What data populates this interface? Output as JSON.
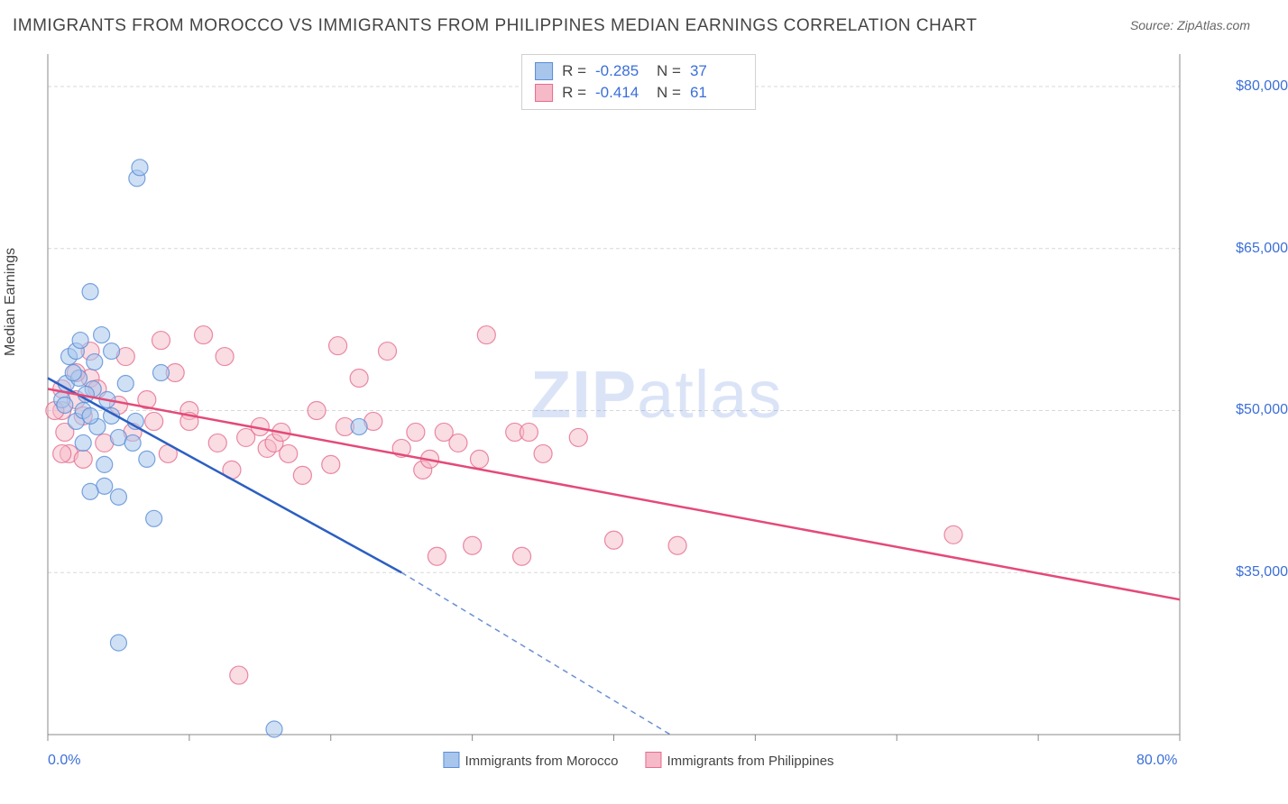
{
  "title": "IMMIGRANTS FROM MOROCCO VS IMMIGRANTS FROM PHILIPPINES MEDIAN EARNINGS CORRELATION CHART",
  "source_label": "Source: ",
  "source_value": "ZipAtlas.com",
  "watermark": {
    "zip": "ZIP",
    "atlas": "atlas"
  },
  "ylabel": "Median Earnings",
  "chart": {
    "type": "scatter",
    "xlim": [
      0,
      80
    ],
    "ylim": [
      20000,
      83000
    ],
    "xticks": [
      0,
      10,
      20,
      30,
      40,
      50,
      60,
      70,
      80
    ],
    "xtick_labels": {
      "0": "0.0%",
      "80": "80.0%"
    },
    "grid_y": [
      35000,
      50000,
      65000,
      80000
    ],
    "ytick_labels": [
      "$35,000",
      "$50,000",
      "$65,000",
      "$80,000"
    ],
    "grid_color": "#d8d8d8",
    "axis_color": "#888888",
    "background_color": "#ffffff"
  },
  "series": [
    {
      "name": "Immigrants from Morocco",
      "fill": "#a8c6ec",
      "stroke": "#5a8dd6",
      "line_color": "#2b5fc2",
      "marker_r": 9,
      "marker_opacity": 0.55,
      "stats": {
        "r": "-0.285",
        "n": "37"
      },
      "trend": {
        "solid": [
          [
            0,
            53000
          ],
          [
            25,
            35000
          ]
        ],
        "dashed": [
          [
            25,
            35000
          ],
          [
            44,
            20000
          ]
        ]
      },
      "points": [
        [
          1.0,
          51000
        ],
        [
          1.3,
          52500
        ],
        [
          1.5,
          55000
        ],
        [
          2.0,
          55500
        ],
        [
          2.0,
          49000
        ],
        [
          2.2,
          53000
        ],
        [
          2.3,
          56500
        ],
        [
          2.5,
          50000
        ],
        [
          2.5,
          47000
        ],
        [
          3.0,
          61000
        ],
        [
          3.2,
          52000
        ],
        [
          3.3,
          54500
        ],
        [
          3.5,
          48500
        ],
        [
          3.8,
          57000
        ],
        [
          4.0,
          45000
        ],
        [
          4.0,
          43000
        ],
        [
          4.5,
          49500
        ],
        [
          4.5,
          55500
        ],
        [
          5.0,
          47500
        ],
        [
          5.5,
          52500
        ],
        [
          5.0,
          42000
        ],
        [
          6.0,
          47000
        ],
        [
          6.2,
          49000
        ],
        [
          6.3,
          71500
        ],
        [
          6.5,
          72500
        ],
        [
          7.0,
          45500
        ],
        [
          7.5,
          40000
        ],
        [
          8.0,
          53500
        ],
        [
          1.2,
          50500
        ],
        [
          1.8,
          53500
        ],
        [
          2.7,
          51500
        ],
        [
          3.0,
          49500
        ],
        [
          4.2,
          51000
        ],
        [
          16.0,
          20500
        ],
        [
          5.0,
          28500
        ],
        [
          22.0,
          48500
        ],
        [
          3.0,
          42500
        ]
      ]
    },
    {
      "name": "Immigrants from Philippines",
      "fill": "#f5b9c8",
      "stroke": "#e56d8e",
      "line_color": "#e44a79",
      "marker_r": 10,
      "marker_opacity": 0.5,
      "stats": {
        "r": "-0.414",
        "n": "61"
      },
      "trend": {
        "solid": [
          [
            0,
            52000
          ],
          [
            80,
            32500
          ]
        ]
      },
      "points": [
        [
          1.0,
          52000
        ],
        [
          1.0,
          50000
        ],
        [
          1.2,
          48000
        ],
        [
          1.5,
          46000
        ],
        [
          2.0,
          51000
        ],
        [
          2.5,
          49500
        ],
        [
          2.5,
          45500
        ],
        [
          3.0,
          53000
        ],
        [
          3.5,
          52000
        ],
        [
          4.0,
          47000
        ],
        [
          5.0,
          50500
        ],
        [
          5.5,
          55000
        ],
        [
          6.0,
          48000
        ],
        [
          7.0,
          51000
        ],
        [
          7.5,
          49000
        ],
        [
          8.0,
          56500
        ],
        [
          8.5,
          46000
        ],
        [
          9.0,
          53500
        ],
        [
          10.0,
          50000
        ],
        [
          10.0,
          49000
        ],
        [
          11.0,
          57000
        ],
        [
          12.0,
          47000
        ],
        [
          12.5,
          55000
        ],
        [
          13.0,
          44500
        ],
        [
          13.5,
          25500
        ],
        [
          14.0,
          47500
        ],
        [
          15.0,
          48500
        ],
        [
          15.5,
          46500
        ],
        [
          16.0,
          47000
        ],
        [
          16.5,
          48000
        ],
        [
          17.0,
          46000
        ],
        [
          18.0,
          44000
        ],
        [
          19.0,
          50000
        ],
        [
          20.0,
          45000
        ],
        [
          20.5,
          56000
        ],
        [
          21.0,
          48500
        ],
        [
          22.0,
          53000
        ],
        [
          23.0,
          49000
        ],
        [
          24.0,
          55500
        ],
        [
          25.0,
          46500
        ],
        [
          26.0,
          48000
        ],
        [
          26.5,
          44500
        ],
        [
          27.0,
          45500
        ],
        [
          27.5,
          36500
        ],
        [
          28.0,
          48000
        ],
        [
          29.0,
          47000
        ],
        [
          30.0,
          37500
        ],
        [
          30.5,
          45500
        ],
        [
          31.0,
          57000
        ],
        [
          33.0,
          48000
        ],
        [
          33.5,
          36500
        ],
        [
          34.0,
          48000
        ],
        [
          35.0,
          46000
        ],
        [
          37.5,
          47500
        ],
        [
          40.0,
          38000
        ],
        [
          44.5,
          37500
        ],
        [
          3.0,
          55500
        ],
        [
          2.0,
          53500
        ],
        [
          0.5,
          50000
        ],
        [
          64.0,
          38500
        ],
        [
          1.0,
          46000
        ]
      ]
    }
  ],
  "stats_legend": {
    "r_label": "R =",
    "n_label": "N ="
  },
  "legend_bottom": {
    "series1_label": "Immigrants from Morocco",
    "series2_label": "Immigrants from Philippines"
  }
}
